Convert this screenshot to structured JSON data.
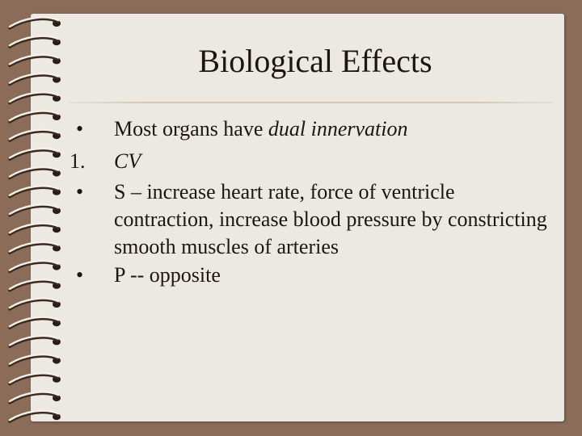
{
  "slide": {
    "title": "Biological Effects",
    "items": [
      {
        "marker": "•",
        "text": "Most organs have ",
        "emphasis": "dual innervation"
      },
      {
        "marker": "1.",
        "text": "",
        "emphasis": "CV"
      },
      {
        "marker": "•",
        "text": "S – increase heart rate, force of ventricle contraction, increase blood pressure by constricting smooth muscles of arteries",
        "emphasis": ""
      },
      {
        "marker": "•",
        "text": "P -- opposite",
        "emphasis": ""
      }
    ]
  },
  "colors": {
    "background": "#8a6c59",
    "paper": "#ece9e3",
    "text": "#1f1414",
    "rule": "#d5c8b3"
  }
}
